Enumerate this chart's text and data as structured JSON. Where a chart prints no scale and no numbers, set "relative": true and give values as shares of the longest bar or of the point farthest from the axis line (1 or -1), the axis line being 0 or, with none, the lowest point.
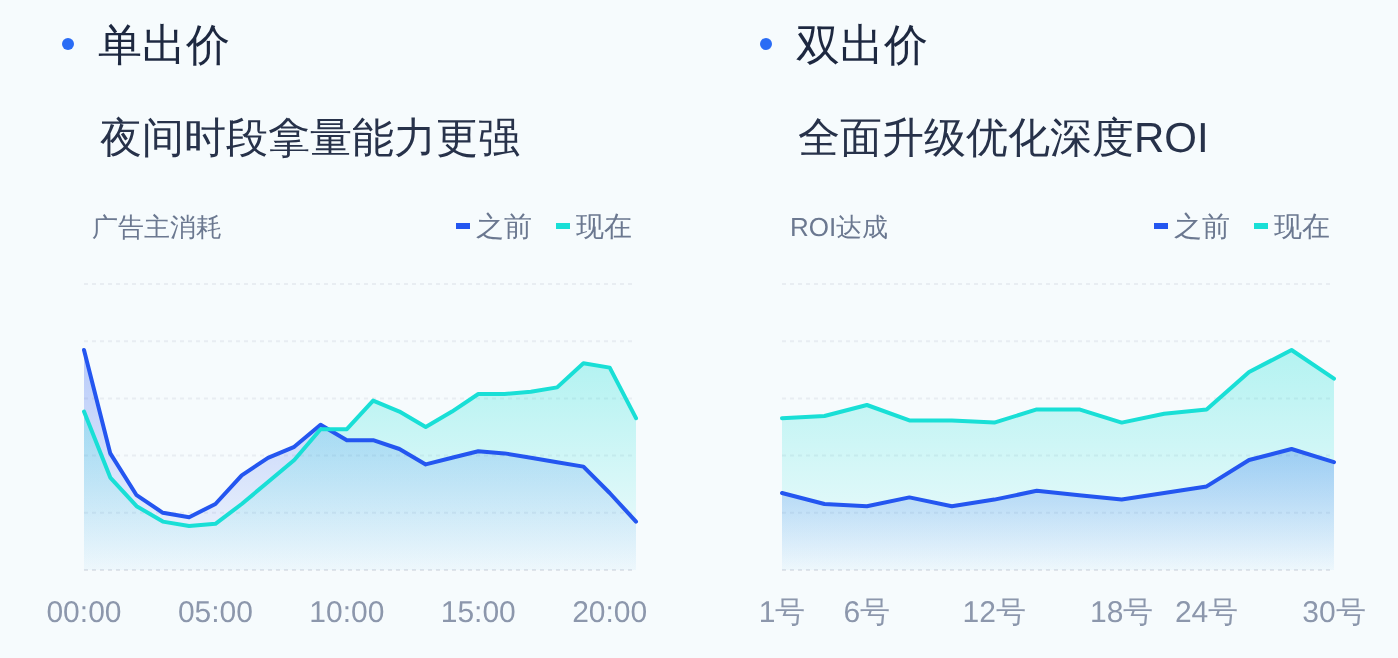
{
  "chart_data": [
    {
      "type": "area",
      "title": "单出价",
      "subtitle": "夜间时段拿量能力更强",
      "ylabel": "广告主消耗",
      "relative": true,
      "grid": "y",
      "legend": "top right",
      "categories": [
        "00:00",
        null,
        null,
        null,
        null,
        "05:00",
        null,
        null,
        null,
        null,
        "10:00",
        null,
        null,
        null,
        null,
        "15:00",
        null,
        null,
        null,
        null,
        "20:00",
        null
      ],
      "series": [
        {
          "name": "之前",
          "color": "#2456f0",
          "values": [
            1,
            0.53,
            0.34,
            0.26,
            0.24,
            0.3,
            0.43,
            0.51,
            0.56,
            0.66,
            0.59,
            0.59,
            0.55,
            0.48,
            0.51,
            0.54,
            0.53,
            0.51,
            0.49,
            0.47,
            0.35,
            0.22
          ]
        },
        {
          "name": "现在",
          "color": "#19dfd6",
          "values": [
            0.72,
            0.42,
            0.29,
            0.22,
            0.2,
            0.21,
            0.3,
            0.4,
            0.5,
            0.64,
            0.64,
            0.77,
            0.72,
            0.65,
            0.72,
            0.8,
            0.8,
            0.81,
            0.83,
            0.94,
            0.92,
            0.69
          ]
        }
      ]
    },
    {
      "type": "area",
      "title": "双出价",
      "subtitle": "全面升级优化深度ROI",
      "ylabel": "ROI达成",
      "relative": true,
      "grid": "y",
      "legend": "top right",
      "categories": [
        "1号",
        null,
        "6号",
        null,
        null,
        "12号",
        null,
        null,
        "18号",
        null,
        "24号",
        null,
        null,
        "30号"
      ],
      "series": [
        {
          "name": "之前",
          "color": "#2456f0",
          "values": [
            0.35,
            0.3,
            0.29,
            0.33,
            0.29,
            0.32,
            0.36,
            0.34,
            0.32,
            0.35,
            0.38,
            0.5,
            0.55,
            0.49
          ]
        },
        {
          "name": "现在",
          "color": "#19dfd6",
          "values": [
            0.69,
            0.7,
            0.75,
            0.68,
            0.68,
            0.67,
            0.73,
            0.73,
            0.67,
            0.71,
            0.73,
            0.9,
            1,
            0.87
          ]
        }
      ]
    }
  ]
}
